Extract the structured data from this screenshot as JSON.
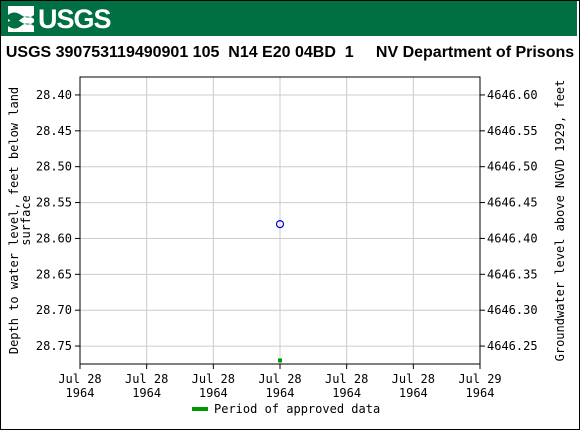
{
  "header": {
    "logo_text": "USGS",
    "brand_color": "#006f41"
  },
  "chart_data": {
    "type": "scatter",
    "title": "USGS 390753119490901 105  N14 E20 04BD  1     NV Department of Prisons",
    "ylabel_left": "Depth to water level, feet below land surface",
    "ylabel_left_lines": [
      "Depth to water level, feet below land",
      "surface"
    ],
    "ylabel_right": "Groundwater level above NGVD 1929, feet",
    "ylim_left": [
      28.375,
      28.775
    ],
    "ylim_right": [
      4646.625,
      4646.225
    ],
    "y_ticks_left": [
      28.4,
      28.45,
      28.5,
      28.55,
      28.6,
      28.65,
      28.7,
      28.75
    ],
    "y_tick_labels_left": [
      "28.40",
      "28.45",
      "28.50",
      "28.55",
      "28.60",
      "28.65",
      "28.70",
      "28.75"
    ],
    "y_ticks_right": [
      4646.6,
      4646.55,
      4646.5,
      4646.45,
      4646.4,
      4646.35,
      4646.3,
      4646.25
    ],
    "y_tick_labels_right": [
      "4646.60",
      "4646.55",
      "4646.50",
      "4646.45",
      "4646.40",
      "4646.35",
      "4646.30",
      "4646.25"
    ],
    "x_ticks": [
      0,
      4,
      8,
      12,
      16,
      20,
      24
    ],
    "xlim": [
      0,
      24
    ],
    "x_tick_labels": [
      [
        "Jul 28",
        "1964"
      ],
      [
        "Jul 28",
        "1964"
      ],
      [
        "Jul 28",
        "1964"
      ],
      [
        "Jul 28",
        "1964"
      ],
      [
        "Jul 28",
        "1964"
      ],
      [
        "Jul 28",
        "1964"
      ],
      [
        "Jul 29",
        "1964"
      ]
    ],
    "grid": true,
    "series": [
      {
        "marker": "open-circle",
        "color": "#0000cc",
        "points": [
          {
            "x": 12,
            "y": 28.58
          }
        ]
      }
    ],
    "approved_period": {
      "color": "#009900",
      "points": [
        {
          "x": 12,
          "y": 28.77
        }
      ]
    },
    "legend": {
      "placement": "bottom",
      "entries": [
        {
          "label": "Period of approved data",
          "color": "#009900"
        }
      ]
    }
  }
}
